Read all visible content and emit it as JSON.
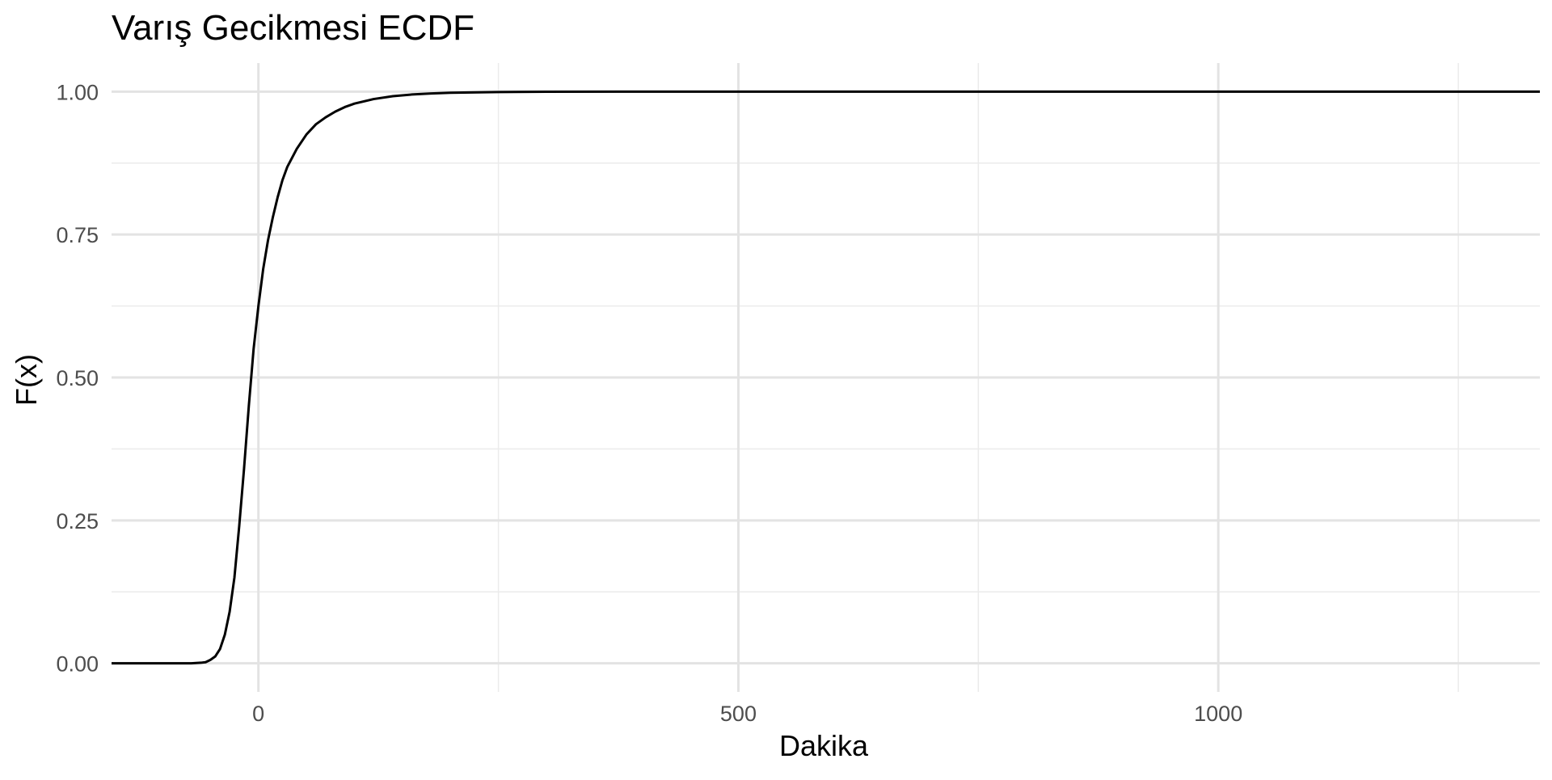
{
  "chart_data": {
    "type": "line",
    "title": "Varış Gecikmesi ECDF",
    "xlabel": "Dakika",
    "ylabel": "F(x)",
    "xlim": [
      -153,
      1335
    ],
    "ylim": [
      -0.05,
      1.05
    ],
    "x_major_ticks": [
      0,
      500,
      1000
    ],
    "x_minor_ticks": [
      250,
      750,
      1250
    ],
    "y_major_ticks": [
      0.0,
      0.25,
      0.5,
      0.75,
      1.0
    ],
    "y_minor_ticks": [
      0.125,
      0.375,
      0.625,
      0.875
    ],
    "x_tick_labels": [
      "0",
      "500",
      "1000"
    ],
    "y_tick_labels": [
      "0.00",
      "0.25",
      "0.50",
      "0.75",
      "1.00"
    ],
    "grid": true,
    "legend": "none",
    "line_color": "#000000",
    "series": [
      {
        "x": [
          -153,
          -70,
          -60,
          -55,
          -50,
          -45,
          -40,
          -35,
          -30,
          -25,
          -20,
          -15,
          -10,
          -5,
          0,
          5,
          10,
          15,
          20,
          25,
          30,
          40,
          50,
          60,
          70,
          80,
          90,
          100,
          120,
          140,
          160,
          180,
          200,
          250,
          300,
          400,
          1335
        ],
        "y": [
          0.0,
          0.0,
          0.001,
          0.002,
          0.006,
          0.012,
          0.025,
          0.05,
          0.09,
          0.15,
          0.24,
          0.34,
          0.45,
          0.55,
          0.625,
          0.69,
          0.74,
          0.78,
          0.815,
          0.845,
          0.868,
          0.9,
          0.925,
          0.943,
          0.955,
          0.965,
          0.973,
          0.979,
          0.987,
          0.992,
          0.995,
          0.9968,
          0.998,
          0.9993,
          0.9998,
          1.0,
          1.0
        ]
      }
    ]
  }
}
